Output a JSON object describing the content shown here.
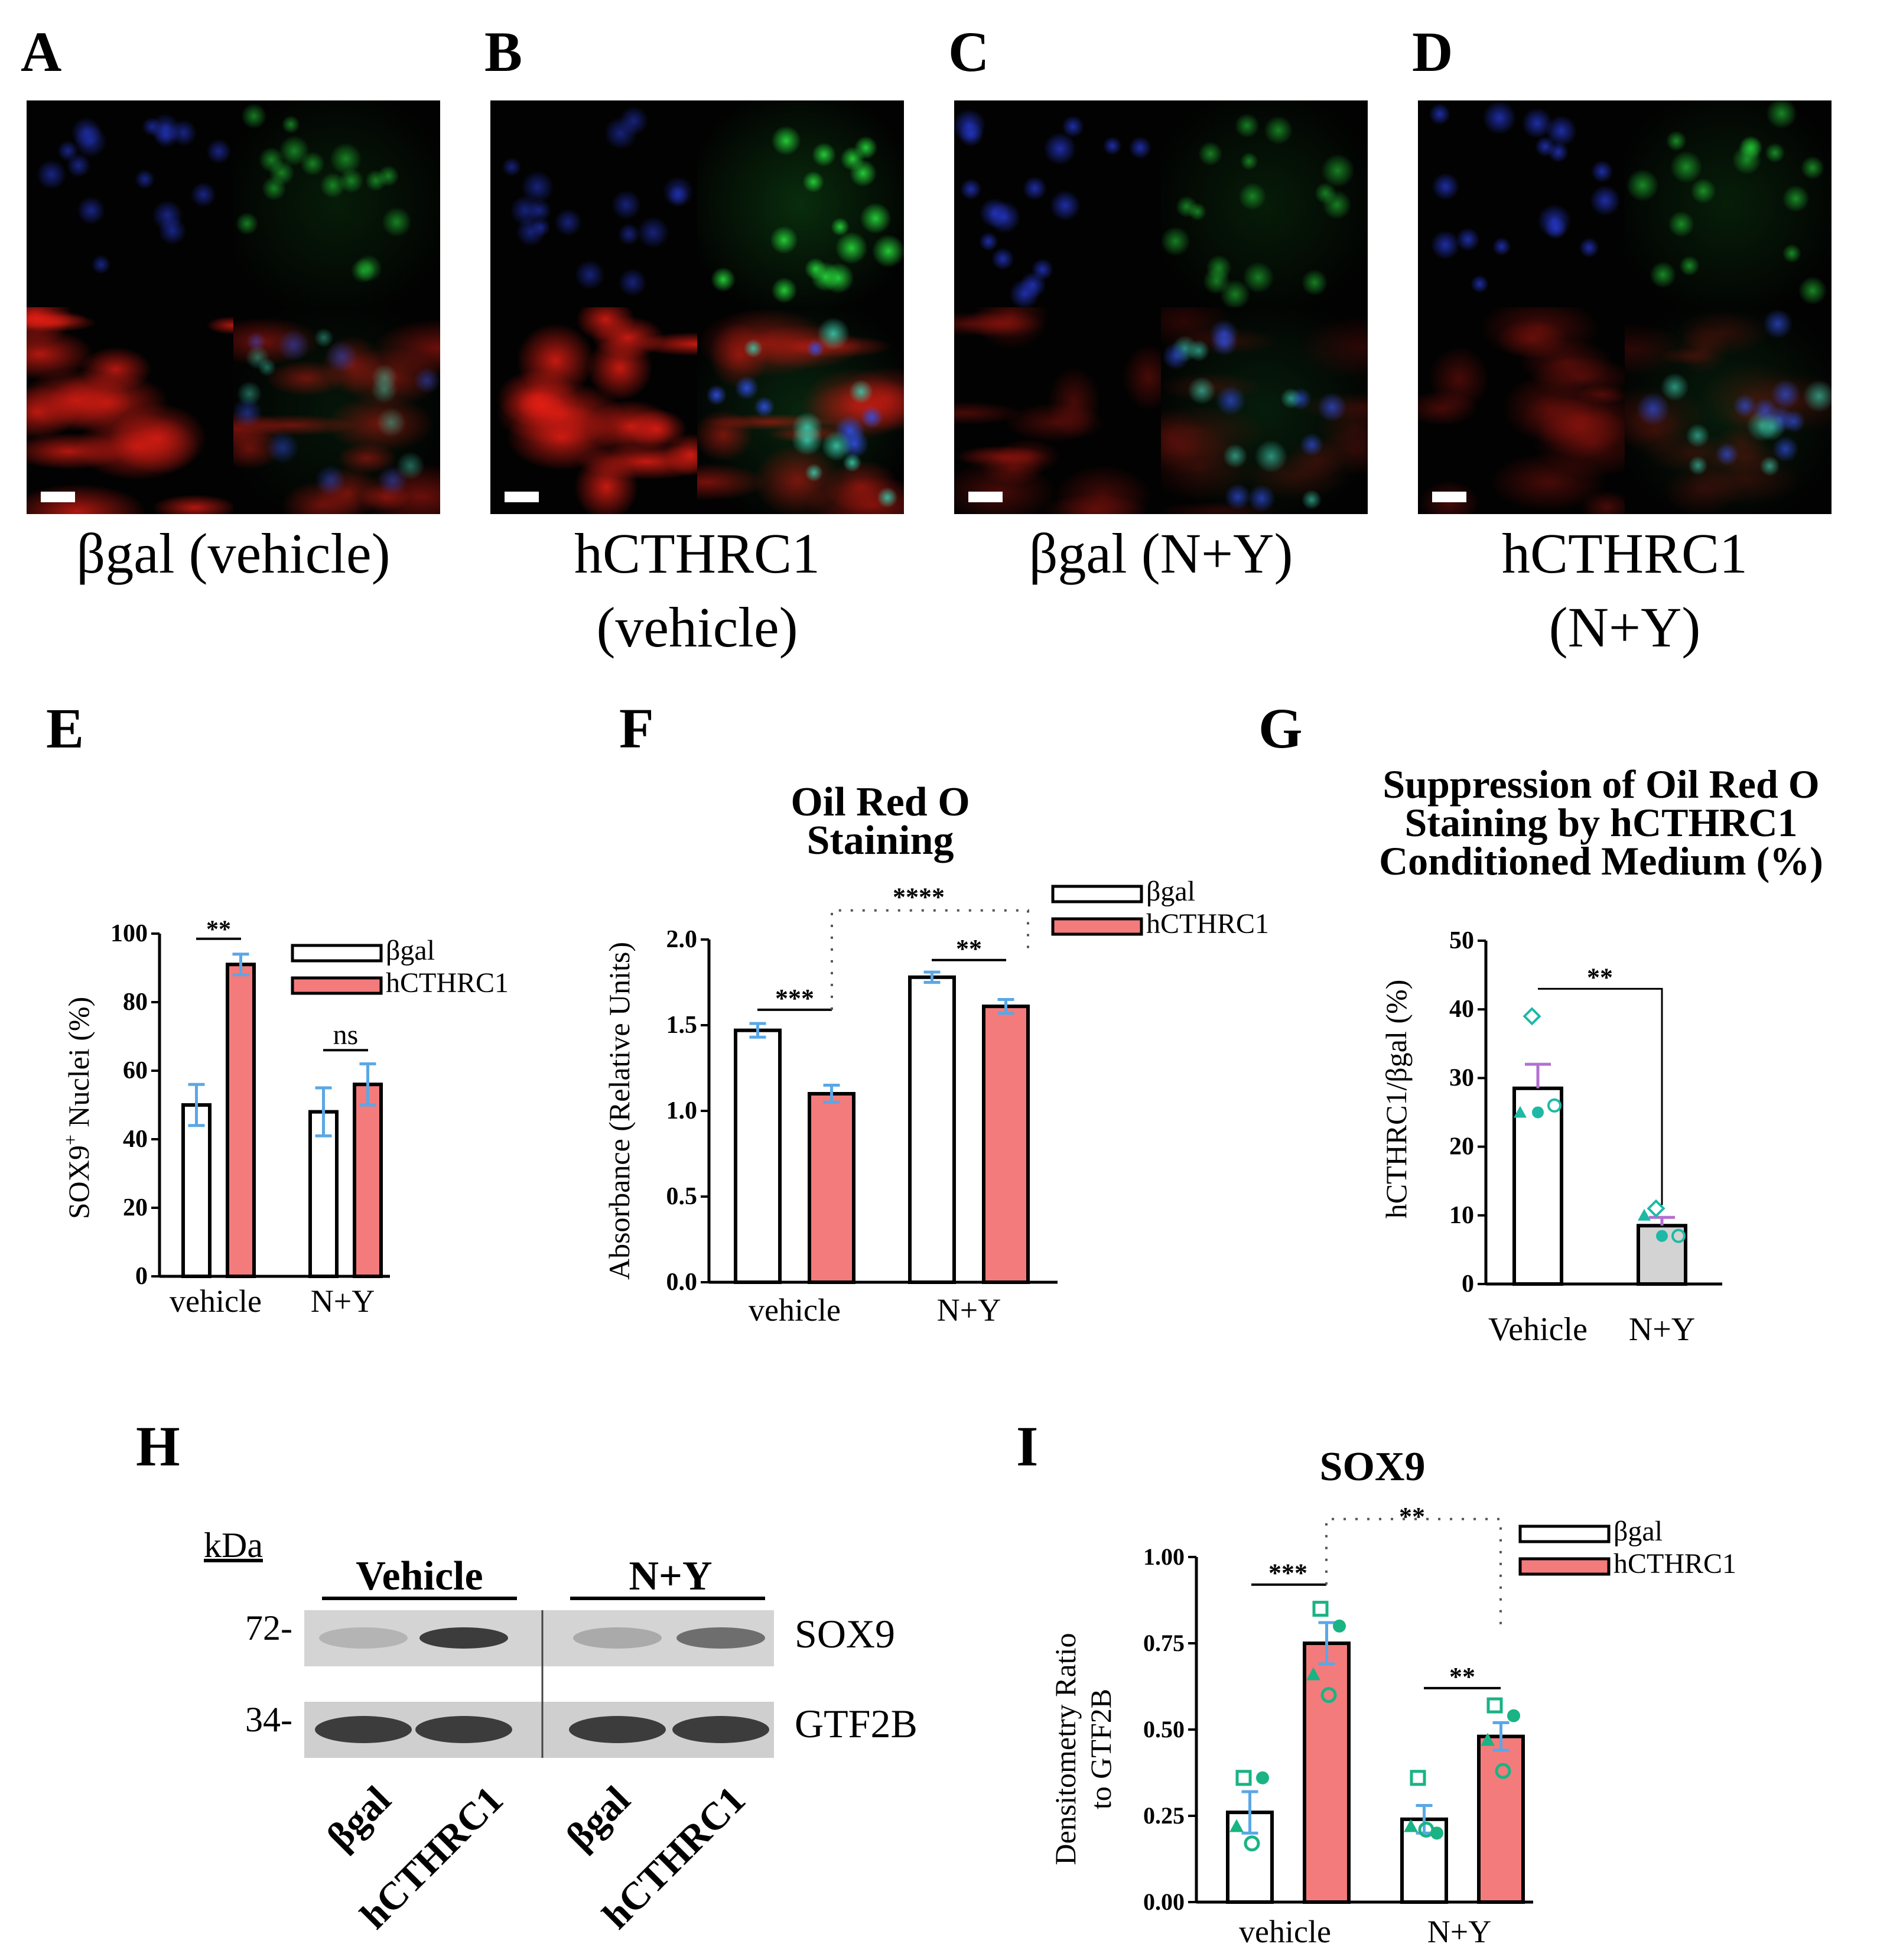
{
  "micrographs": [
    {
      "letter": "A",
      "caption": "βgal (vehicle)",
      "dapi": 0.6,
      "green": 0.55,
      "red": 0.9,
      "merge_green": 0.5
    },
    {
      "letter": "B",
      "caption": "hCTHRC1\n(vehicle)",
      "dapi": 0.55,
      "green": 0.9,
      "red": 1.0,
      "merge_green": 0.9
    },
    {
      "letter": "C",
      "caption": "βgal (N+Y)",
      "dapi": 0.75,
      "green": 0.55,
      "red": 0.35,
      "merge_green": 0.7
    },
    {
      "letter": "D",
      "caption": "hCTHRC1\n(N+Y)",
      "dapi": 0.75,
      "green": 0.6,
      "red": 0.35,
      "merge_green": 0.7
    }
  ],
  "colors": {
    "bgal_fill": "#ffffff",
    "hcthrc1_fill": "#f37b7b",
    "error_bar": "#5aa7e6",
    "nplusy_gray": "#d3d3d3",
    "marker_teal": "#1db9a6",
    "marker_purple": "#b36fd1",
    "marker_green": "#1ab384"
  },
  "panel_E": {
    "letter": "E",
    "chart_data": {
      "type": "bar",
      "categories": [
        "vehicle",
        "N+Y"
      ],
      "series": [
        {
          "name": "βgal",
          "values": [
            50,
            48
          ],
          "errors": [
            6,
            7
          ]
        },
        {
          "name": "hCTHRC1",
          "values": [
            91,
            56
          ],
          "errors": [
            3,
            6
          ]
        }
      ],
      "ylabel_main": "SOX9",
      "ylabel_sup": "+",
      "ylabel_rest": " Nuclei (%)",
      "ylim": [
        0,
        100
      ],
      "yticks": [
        "0",
        "20",
        "40",
        "60",
        "80",
        "100"
      ],
      "significance": [
        "**",
        "ns"
      ],
      "legend": "top-right"
    }
  },
  "panel_F": {
    "letter": "F",
    "chart_data": {
      "type": "bar",
      "title_line1": "Oil Red O",
      "title_line2": "Staining",
      "categories": [
        "vehicle",
        "N+Y"
      ],
      "series": [
        {
          "name": "βgal",
          "values": [
            1.47,
            1.78
          ],
          "errors": [
            0.04,
            0.03
          ]
        },
        {
          "name": "hCTHRC1",
          "values": [
            1.1,
            1.61
          ],
          "errors": [
            0.05,
            0.04
          ]
        }
      ],
      "ylabel": "Absorbance (Relative Units)",
      "ylim": [
        0,
        2.0
      ],
      "yticks": [
        "0.0",
        "0.5",
        "1.0",
        "1.5",
        "2.0"
      ],
      "significance": [
        "***",
        "**",
        "****"
      ],
      "legend": "top-right"
    }
  },
  "panel_G": {
    "letter": "G",
    "chart_data": {
      "type": "bar",
      "title_line1": "Suppression of Oil Red O",
      "title_line2": "Staining by hCTHRC1",
      "title_line3": "Conditioned Medium (%)",
      "categories": [
        "Vehicle",
        "N+Y"
      ],
      "values": [
        28.5,
        8.5
      ],
      "errors": [
        3.5,
        1.2
      ],
      "points": [
        [
          39,
          25,
          25,
          26
        ],
        [
          11,
          10,
          7,
          7
        ]
      ],
      "ylabel": "hCTHRC1/βgal (%)",
      "ylim": [
        0,
        50
      ],
      "yticks": [
        "0",
        "10",
        "20",
        "30",
        "40",
        "50"
      ],
      "significance": [
        "**"
      ]
    }
  },
  "panel_H": {
    "letter": "H",
    "kda_label": "kDa",
    "markers": [
      "72-",
      "34-"
    ],
    "groups": [
      "Vehicle",
      "N+Y"
    ],
    "bands": [
      "SOX9",
      "GTF2B"
    ],
    "lanes": [
      "βgal",
      "hCTHRC1",
      "βgal",
      "hCTHRC1"
    ],
    "sox9_intensity": [
      0.25,
      0.85,
      0.3,
      0.6
    ],
    "gtf2b_intensity": [
      0.85,
      0.85,
      0.85,
      0.85
    ]
  },
  "panel_I": {
    "letter": "I",
    "chart_data": {
      "type": "bar",
      "title": "SOX9",
      "categories": [
        "vehicle",
        "N+Y"
      ],
      "series": [
        {
          "name": "βgal",
          "values": [
            0.26,
            0.24
          ],
          "errors": [
            0.06,
            0.04
          ]
        },
        {
          "name": "hCTHRC1",
          "values": [
            0.75,
            0.48
          ],
          "errors": [
            0.06,
            0.04
          ]
        }
      ],
      "points_bgal": [
        [
          0.36,
          0.36,
          0.22,
          0.17
        ],
        [
          0.36,
          0.2,
          0.22,
          0.21
        ]
      ],
      "points_hcthrc1": [
        [
          0.85,
          0.8,
          0.66,
          0.6
        ],
        [
          0.57,
          0.54,
          0.47,
          0.38
        ]
      ],
      "ylabel_line1": "Densitometry Ratio",
      "ylabel_line2": "to GTF2B",
      "ylim": [
        0,
        1.0
      ],
      "yticks": [
        "0.00",
        "0.25",
        "0.50",
        "0.75",
        "1.00"
      ],
      "significance": [
        "***",
        "**",
        "**"
      ],
      "legend": "top-right"
    }
  }
}
